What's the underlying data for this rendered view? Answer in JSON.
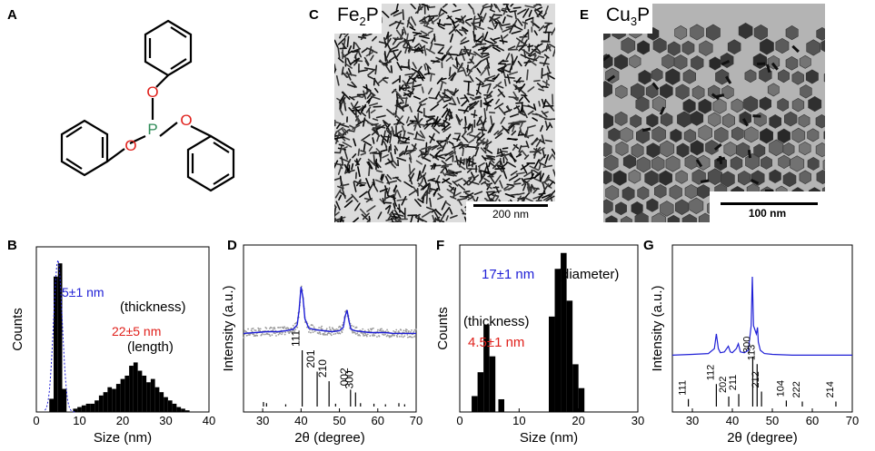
{
  "panels": {
    "A": "A",
    "B": "B",
    "C": "C",
    "D": "D",
    "E": "E",
    "F": "F",
    "G": "G"
  },
  "molecule": {
    "atoms": {
      "P": "P",
      "O1": "O",
      "O2": "O",
      "O3": "O"
    },
    "colors": {
      "P": "#2e8b57",
      "O": "#e0201b",
      "bond": "#000000"
    }
  },
  "tem_C": {
    "material_base": "Fe",
    "material_sub": "2",
    "material_tail": "P",
    "scale_bar": "200 nm"
  },
  "tem_E": {
    "material_base": "Cu",
    "material_sub": "3",
    "material_tail": "P",
    "scale_bar": "100 nm"
  },
  "chart_data": [
    {
      "panel": "B",
      "type": "bar",
      "xlabel": "Size (nm)",
      "ylabel": "Counts",
      "xlim": [
        0,
        40
      ],
      "xticks": [
        "0",
        "10",
        "20",
        "30",
        "40"
      ],
      "annotations": [
        {
          "text": "5±1 nm",
          "color": "#1f1fd6"
        },
        {
          "text": "(thickness)",
          "color": "#000000"
        },
        {
          "text": "22±5 nm",
          "color": "#e0201b"
        },
        {
          "text": "(length)",
          "color": "#000000"
        }
      ],
      "series": [
        {
          "centers": [
            3.5,
            4.5,
            5.5,
            6.5
          ],
          "values": [
            8,
            82,
            90,
            14
          ]
        },
        {
          "centers": [
            9,
            10,
            11,
            12,
            13,
            14,
            15,
            16,
            17,
            18,
            19,
            20,
            21,
            22,
            23,
            24,
            25,
            26,
            27,
            28,
            29,
            30,
            31,
            32,
            33,
            34,
            35
          ],
          "values": [
            2,
            3,
            4,
            5,
            5,
            7,
            10,
            12,
            15,
            14,
            17,
            20,
            22,
            28,
            30,
            25,
            22,
            18,
            20,
            15,
            12,
            9,
            7,
            5,
            3,
            2,
            1
          ]
        }
      ],
      "ylim": [
        0,
        100
      ]
    },
    {
      "panel": "D",
      "type": "line",
      "xlabel": "2θ (degree)",
      "ylabel": "Intensity (a.u.)",
      "xlim": [
        25,
        70
      ],
      "xticks": [
        "30",
        "40",
        "50",
        "60",
        "70"
      ],
      "series": [
        {
          "color": "#1f1fd6",
          "x": [
            25,
            28,
            31,
            34,
            36,
            38,
            39,
            39.5,
            40,
            40.5,
            41,
            42,
            44,
            46,
            48,
            50,
            51,
            51.5,
            52,
            52.5,
            53,
            54,
            56,
            58,
            60,
            62,
            64,
            66,
            68,
            70
          ],
          "y": [
            0.08,
            0.09,
            0.1,
            0.1,
            0.11,
            0.13,
            0.18,
            0.35,
            0.62,
            0.5,
            0.25,
            0.14,
            0.12,
            0.11,
            0.1,
            0.11,
            0.15,
            0.28,
            0.35,
            0.22,
            0.13,
            0.11,
            0.1,
            0.09,
            0.09,
            0.09,
            0.08,
            0.08,
            0.08,
            0.08
          ]
        }
      ],
      "ref_peaks": [
        {
          "x": 40.3,
          "h": 1.0,
          "label": "111"
        },
        {
          "x": 44.2,
          "h": 0.62,
          "label": "201"
        },
        {
          "x": 47.3,
          "h": 0.45,
          "label": "210"
        },
        {
          "x": 52.9,
          "h": 0.3,
          "label": "002"
        },
        {
          "x": 54.2,
          "h": 0.25,
          "label": "300"
        },
        {
          "x": 30.2,
          "h": 0.08
        },
        {
          "x": 31.0,
          "h": 0.06
        },
        {
          "x": 36.0,
          "h": 0.04
        },
        {
          "x": 49.0,
          "h": 0.05
        },
        {
          "x": 55.5,
          "h": 0.06
        },
        {
          "x": 59.0,
          "h": 0.05
        },
        {
          "x": 62.0,
          "h": 0.04
        },
        {
          "x": 65.5,
          "h": 0.06
        },
        {
          "x": 67.0,
          "h": 0.04
        }
      ],
      "ylim": [
        0,
        1
      ]
    },
    {
      "panel": "F",
      "type": "bar",
      "xlabel": "Size (nm)",
      "ylabel": "Counts",
      "xlim": [
        0,
        30
      ],
      "xticks": [
        "0",
        "10",
        "20",
        "30"
      ],
      "annotations": [
        {
          "text": "17±1 nm",
          "color": "#1f1fd6"
        },
        {
          "text": "(diameter)",
          "color": "#000000"
        },
        {
          "text": "(thickness)",
          "color": "#000000"
        },
        {
          "text": "4.5±1 nm",
          "color": "#e0201b"
        }
      ],
      "series": [
        {
          "centers": [
            2.5,
            3.5,
            4.5,
            5.5,
            7.0
          ],
          "values": [
            10,
            25,
            55,
            35,
            8
          ]
        },
        {
          "centers": [
            15.5,
            16.5,
            17.5,
            18.5,
            19.5,
            20.5
          ],
          "values": [
            60,
            90,
            100,
            70,
            30,
            15
          ]
        }
      ],
      "ylim": [
        0,
        105
      ]
    },
    {
      "panel": "G",
      "type": "line",
      "xlabel": "2θ (degree)",
      "ylabel": "Intensity (a.u.)",
      "xlim": [
        25,
        70
      ],
      "xticks": [
        "30",
        "40",
        "50",
        "60",
        "70"
      ],
      "series": [
        {
          "color": "#1f1fd6",
          "x": [
            25,
            30,
            34,
            35.5,
            36,
            36.5,
            37,
            38,
            39,
            39.5,
            40,
            41,
            41.5,
            42,
            43,
            44,
            44.7,
            45,
            45.3,
            46,
            46.3,
            46.5,
            47,
            48,
            50,
            55,
            60,
            65,
            70
          ],
          "y": [
            0.04,
            0.05,
            0.06,
            0.12,
            0.3,
            0.12,
            0.07,
            0.08,
            0.15,
            0.08,
            0.07,
            0.12,
            0.18,
            0.08,
            0.07,
            0.1,
            0.4,
            1.0,
            0.4,
            0.3,
            0.38,
            0.2,
            0.1,
            0.06,
            0.05,
            0.04,
            0.04,
            0.04,
            0.04
          ]
        }
      ],
      "ref_peaks": [
        {
          "x": 29.0,
          "h": 0.15,
          "label": "111"
        },
        {
          "x": 36.0,
          "h": 0.45,
          "label": "112"
        },
        {
          "x": 39.1,
          "h": 0.2,
          "label": "202"
        },
        {
          "x": 41.6,
          "h": 0.25,
          "label": "211"
        },
        {
          "x": 45.1,
          "h": 1.0,
          "label": "300"
        },
        {
          "x": 46.2,
          "h": 0.85,
          "label": "113"
        },
        {
          "x": 47.3,
          "h": 0.3,
          "label": "212"
        },
        {
          "x": 53.5,
          "h": 0.12,
          "label": "104"
        },
        {
          "x": 57.5,
          "h": 0.1,
          "label": "222"
        },
        {
          "x": 65.9,
          "h": 0.1,
          "label": "214"
        }
      ],
      "ylim": [
        0,
        1
      ]
    }
  ]
}
